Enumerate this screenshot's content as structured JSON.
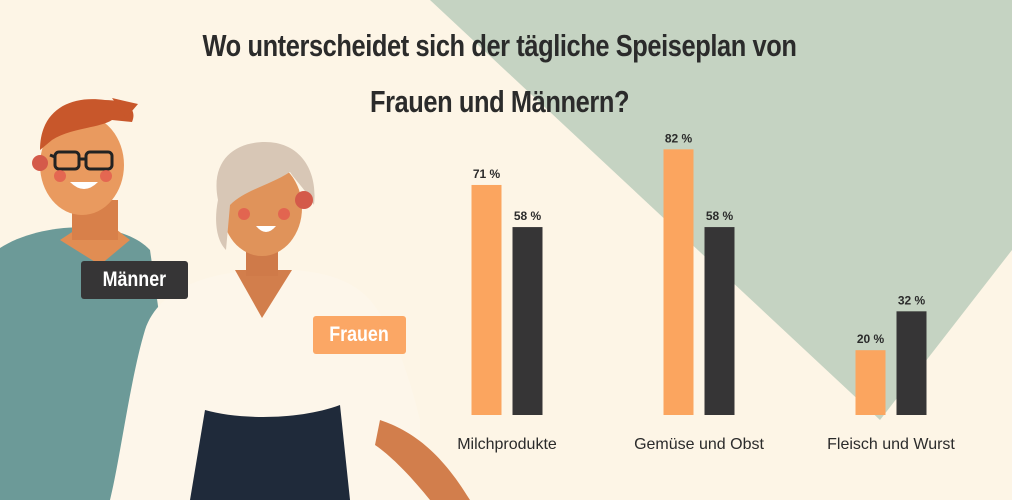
{
  "title_lines": [
    "Wo unterscheidet sich der tägliche Speiseplan von",
    "Frauen und Männern?"
  ],
  "legend": {
    "men_label": "Männer",
    "women_label": "Frauen"
  },
  "colors": {
    "women": "#FBA55F",
    "men": "#363536",
    "background": "#FDF5E6",
    "background_shape": "#C5D3C2",
    "text": "#2B2B2B"
  },
  "chart_data": {
    "type": "bar",
    "categories": [
      "Milchprodukte",
      "Gemüse und Obst",
      "Fleisch und Wurst"
    ],
    "series": [
      {
        "name": "Frauen",
        "values": [
          71,
          82,
          20
        ]
      },
      {
        "name": "Männer",
        "values": [
          58,
          58,
          32
        ]
      }
    ],
    "value_suffix": " %",
    "ylim": [
      0,
      100
    ]
  }
}
